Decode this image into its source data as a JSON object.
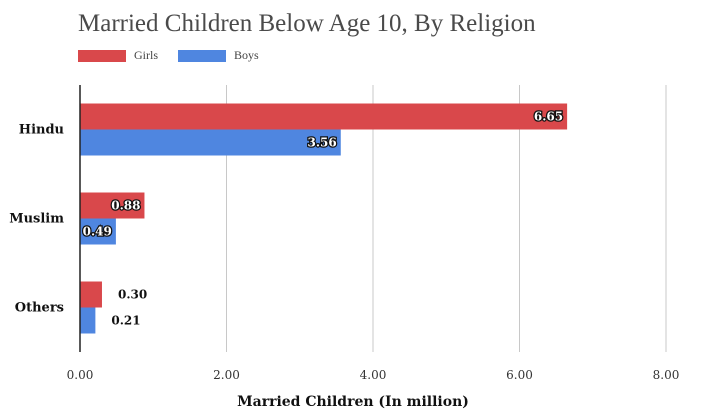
{
  "chart_data": {
    "type": "bar",
    "orientation": "horizontal",
    "title": "Married Children Below Age 10, By Religion",
    "categories": [
      "Hindu",
      "Muslim",
      "Others"
    ],
    "series": [
      {
        "name": "Girls",
        "color": "#d9484b",
        "values": [
          6.65,
          0.88,
          0.3
        ]
      },
      {
        "name": "Boys",
        "color": "#4f86e0",
        "values": [
          3.56,
          0.49,
          0.21
        ]
      }
    ],
    "value_labels": [
      [
        "6.65",
        "0.88",
        "0.30"
      ],
      [
        "3.56",
        "0.49",
        "0.21"
      ]
    ],
    "xlabel": "Married Children (In million)",
    "ylabel": "",
    "xlim": [
      0,
      8
    ],
    "x_ticks": [
      "0.00",
      "2.00",
      "4.00",
      "6.00",
      "8.00"
    ],
    "grid": "vertical",
    "legend_position": "top-left"
  }
}
